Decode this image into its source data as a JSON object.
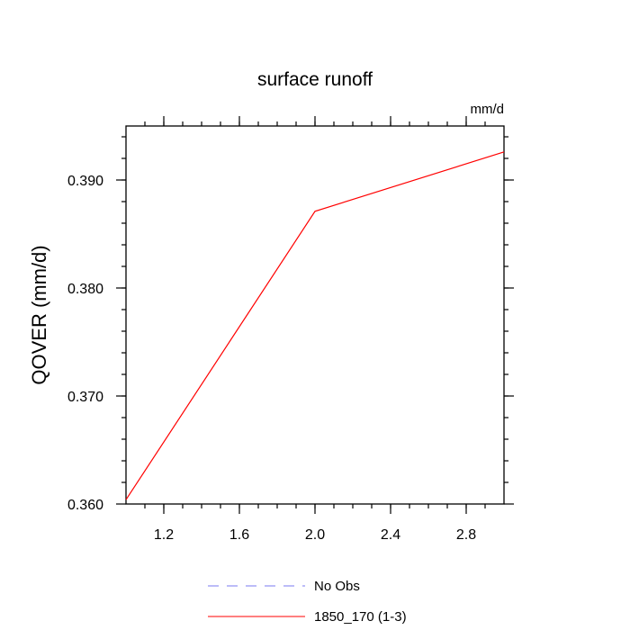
{
  "chart_data": {
    "type": "line",
    "title": "surface runoff",
    "units_label": "mm/d",
    "ylabel": "QOVER  (mm/d)",
    "xlabel": "",
    "xlim": [
      1.0,
      3.0
    ],
    "ylim": [
      0.36,
      0.395
    ],
    "x_ticks": [
      1.2,
      1.6,
      2.0,
      2.4,
      2.8
    ],
    "x_tick_labels": [
      "1.2",
      "1.6",
      "2.0",
      "2.4",
      "2.8"
    ],
    "y_ticks": [
      0.36,
      0.37,
      0.38,
      0.39
    ],
    "y_tick_labels": [
      "0.360",
      "0.370",
      "0.380",
      "0.390"
    ],
    "grid": false,
    "legend_position": "bottom-center",
    "series": [
      {
        "name": "1850_170 (1-3)",
        "color": "#ff0000",
        "dash": "solid",
        "x": [
          1.0,
          2.0,
          3.0
        ],
        "y": [
          0.3604,
          0.3871,
          0.3926
        ]
      }
    ],
    "legend": [
      {
        "label": "No Obs",
        "color": "#7a7af0",
        "dash": "dashed"
      },
      {
        "label": "1850_170 (1-3)",
        "color": "#ff0000",
        "dash": "solid"
      }
    ]
  }
}
